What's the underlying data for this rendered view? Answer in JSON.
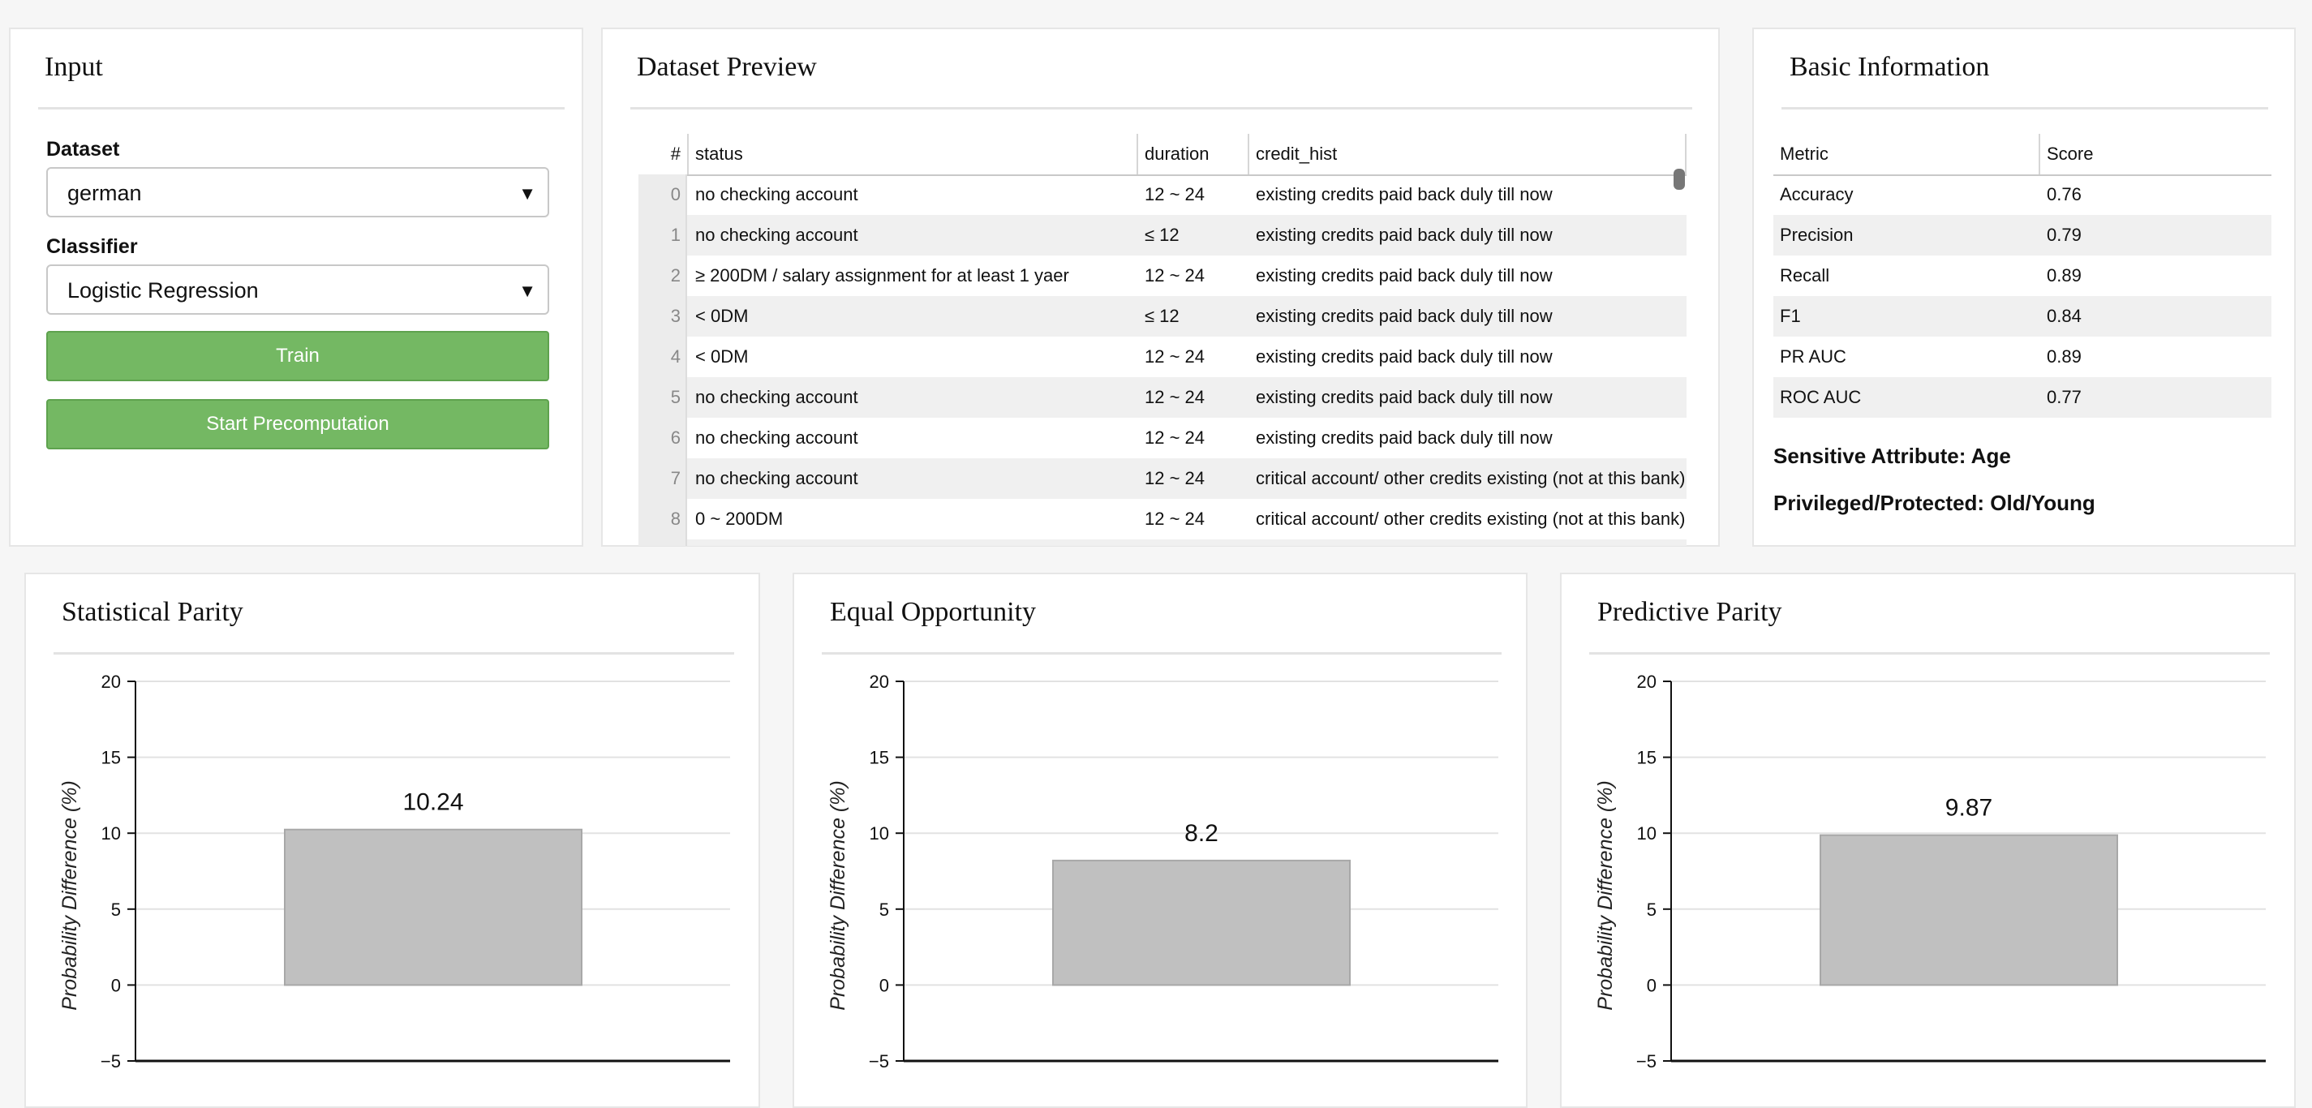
{
  "input_panel": {
    "title": "Input",
    "dataset_label": "Dataset",
    "dataset_value": "german",
    "classifier_label": "Classifier",
    "classifier_value": "Logistic Regression",
    "train_button": "Train",
    "precompute_button": "Start Precomputation",
    "dropdown_icon": "caret-down-icon"
  },
  "dataset_preview": {
    "title": "Dataset Preview",
    "columns": [
      "#",
      "status",
      "duration",
      "credit_hist"
    ],
    "rows": [
      [
        "0",
        "no checking account",
        "12 ~ 24",
        "existing credits paid back duly till now"
      ],
      [
        "1",
        "no checking account",
        "≤ 12",
        "existing credits paid back duly till now"
      ],
      [
        "2",
        "≥ 200DM / salary assignment for at least 1 yaer",
        "12 ~ 24",
        "existing credits paid back duly till now"
      ],
      [
        "3",
        "< 0DM",
        "≤ 12",
        "existing credits paid back duly till now"
      ],
      [
        "4",
        "< 0DM",
        "12 ~ 24",
        "existing credits paid back duly till now"
      ],
      [
        "5",
        "no checking account",
        "12 ~ 24",
        "existing credits paid back duly till now"
      ],
      [
        "6",
        "no checking account",
        "12 ~ 24",
        "existing credits paid back duly till now"
      ],
      [
        "7",
        "no checking account",
        "12 ~ 24",
        "critical account/ other credits existing (not at this bank)"
      ],
      [
        "8",
        "0 ~ 200DM",
        "12 ~ 24",
        "critical account/ other credits existing (not at this bank)"
      ]
    ]
  },
  "basic_info": {
    "title": "Basic Information",
    "columns": [
      "Metric",
      "Score"
    ],
    "rows": [
      [
        "Accuracy",
        "0.76"
      ],
      [
        "Precision",
        "0.79"
      ],
      [
        "Recall",
        "0.89"
      ],
      [
        "F1",
        "0.84"
      ],
      [
        "PR AUC",
        "0.89"
      ],
      [
        "ROC AUC",
        "0.77"
      ]
    ],
    "sensitive_attribute": "Sensitive Attribute: Age",
    "privileged_protected": "Privileged/Protected: Old/Young"
  },
  "chart_data": [
    {
      "type": "bar",
      "title": "Statistical Parity",
      "ylabel": "Probability Difference (%)",
      "ylim": [
        -5,
        20
      ],
      "yticks": [
        "−5",
        "0",
        "5",
        "10",
        "15",
        "20"
      ],
      "values": [
        10.24
      ],
      "value_labels": [
        "10.24"
      ],
      "grid": true,
      "bar_color": "#c0c0c0"
    },
    {
      "type": "bar",
      "title": "Equal Opportunity",
      "ylabel": "Probability Difference (%)",
      "ylim": [
        -5,
        20
      ],
      "yticks": [
        "−5",
        "0",
        "5",
        "10",
        "15",
        "20"
      ],
      "values": [
        8.2
      ],
      "value_labels": [
        "8.2"
      ],
      "grid": true,
      "bar_color": "#c0c0c0"
    },
    {
      "type": "bar",
      "title": "Predictive Parity",
      "ylabel": "Probability Difference (%)",
      "ylim": [
        -5,
        20
      ],
      "yticks": [
        "−5",
        "0",
        "5",
        "10",
        "15",
        "20"
      ],
      "values": [
        9.87
      ],
      "value_labels": [
        "9.87"
      ],
      "grid": true,
      "bar_color": "#c0c0c0"
    }
  ]
}
